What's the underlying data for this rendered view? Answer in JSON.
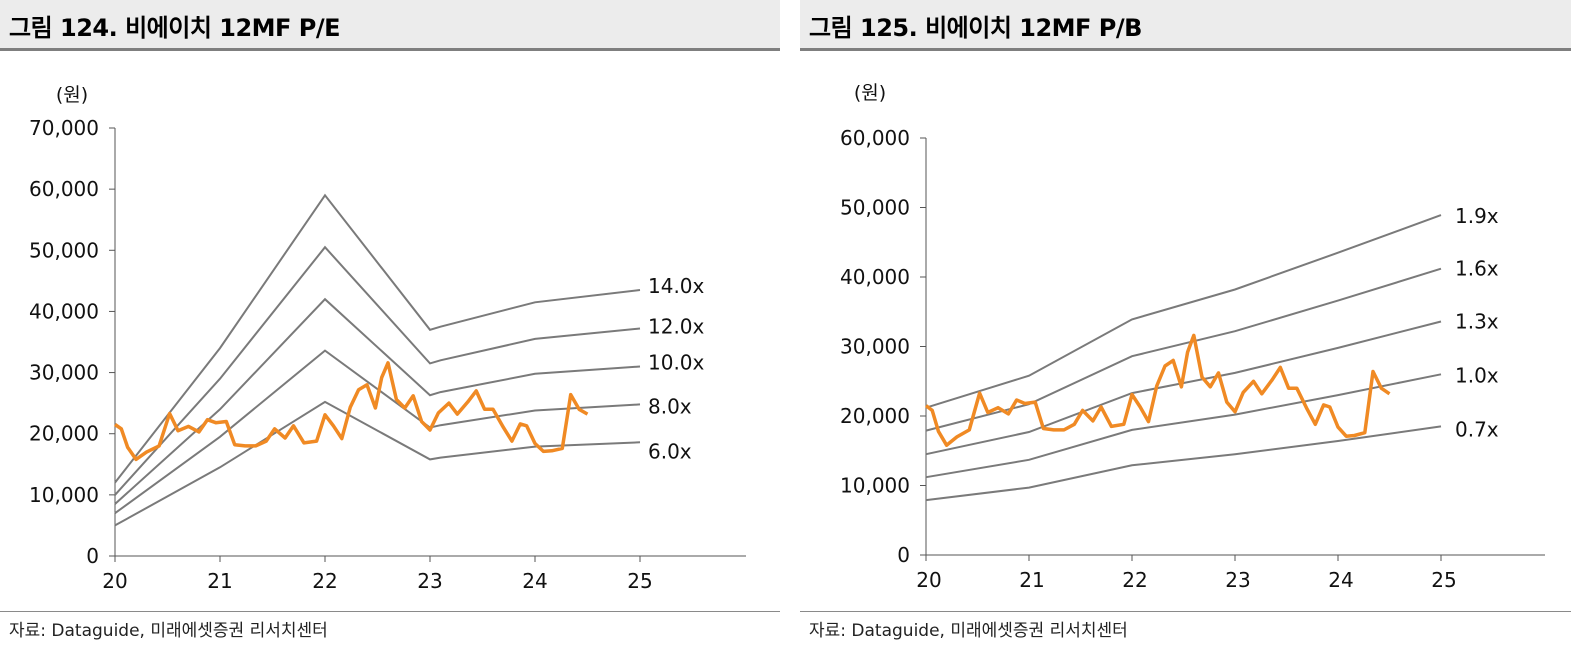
{
  "chart_data": [
    {
      "type": "line",
      "title": "그림 124. 비에이치 12MF P/E",
      "unit": "(원)",
      "source": "자료: Dataguide, 미래에셋증권 리서치센터",
      "x_ticks": [
        "20",
        "21",
        "22",
        "23",
        "24",
        "25"
      ],
      "y_ticks": [
        "0",
        "10,000",
        "20,000",
        "30,000",
        "40,000",
        "50,000",
        "60,000",
        "70,000"
      ],
      "xlim": [
        2020,
        2026
      ],
      "ylim": [
        0,
        70000
      ],
      "grid": false,
      "legend": "none",
      "band_labels": [
        "14.0x",
        "12.0x",
        "10.0x",
        "8.0x",
        "6.0x"
      ],
      "band_lines": [
        {
          "name": "14.0x",
          "x": [
            2020,
            2021,
            2022,
            2023,
            2023.1,
            2024,
            2025
          ],
          "y": [
            12000,
            34000,
            59000,
            37000,
            37500,
            41500,
            43500
          ]
        },
        {
          "name": "12.0x",
          "x": [
            2020,
            2021,
            2022,
            2023,
            2023.1,
            2024,
            2025
          ],
          "y": [
            10000,
            29000,
            50500,
            31500,
            32000,
            35500,
            37200
          ]
        },
        {
          "name": "10.0x",
          "x": [
            2020,
            2021,
            2022,
            2023,
            2023.1,
            2024,
            2025
          ],
          "y": [
            8500,
            24000,
            42000,
            26300,
            26800,
            29800,
            31000
          ]
        },
        {
          "name": "8.0x",
          "x": [
            2020,
            2021,
            2022,
            2023,
            2023.1,
            2024,
            2025
          ],
          "y": [
            7000,
            19500,
            33600,
            21000,
            21400,
            23800,
            24800
          ]
        },
        {
          "name": "6.0x",
          "x": [
            2020,
            2021,
            2022,
            2023,
            2023.1,
            2024,
            2025
          ],
          "y": [
            5000,
            14500,
            25200,
            15800,
            16100,
            17900,
            18600
          ]
        }
      ],
      "price_line": {
        "color": "#f08a24",
        "x": [
          2020,
          2020.06,
          2020.12,
          2020.2,
          2020.3,
          2020.42,
          2020.52,
          2020.6,
          2020.7,
          2020.8,
          2020.88,
          2020.96,
          2021.06,
          2021.14,
          2021.24,
          2021.34,
          2021.44,
          2021.52,
          2021.62,
          2021.7,
          2021.8,
          2021.92,
          2022,
          2022.08,
          2022.16,
          2022.24,
          2022.32,
          2022.4,
          2022.48,
          2022.54,
          2022.6,
          2022.68,
          2022.76,
          2022.84,
          2022.92,
          2023,
          2023.08,
          2023.18,
          2023.26,
          2023.36,
          2023.44,
          2023.52,
          2023.6,
          2023.7,
          2023.78,
          2023.86,
          2023.92,
          2024,
          2024.08,
          2024.16,
          2024.26,
          2024.34,
          2024.42,
          2024.5
        ],
        "y": [
          21500,
          20800,
          17800,
          15800,
          17000,
          18000,
          23300,
          20500,
          21200,
          20300,
          22300,
          21800,
          22000,
          18200,
          18000,
          18000,
          18800,
          20800,
          19300,
          21300,
          18500,
          18800,
          23100,
          21300,
          19200,
          24300,
          27200,
          28000,
          24200,
          29200,
          31600,
          25600,
          24200,
          26200,
          22000,
          20600,
          23400,
          25000,
          23200,
          25200,
          27000,
          24000,
          24000,
          21000,
          18800,
          21600,
          21300,
          18400,
          17100,
          17200,
          17600,
          26400,
          24000,
          23200
        ]
      }
    },
    {
      "type": "line",
      "title": "그림 125. 비에이치 12MF P/B",
      "unit": "(원)",
      "source": "자료: Dataguide, 미래에셋증권 리서치센터",
      "x_ticks": [
        "20",
        "21",
        "22",
        "23",
        "24",
        "25"
      ],
      "y_ticks": [
        "0",
        "10,000",
        "20,000",
        "30,000",
        "40,000",
        "50,000",
        "60,000"
      ],
      "xlim": [
        2020,
        2026
      ],
      "ylim": [
        0,
        60000
      ],
      "grid": false,
      "legend": "none",
      "band_labels": [
        "1.9x",
        "1.6x",
        "1.3x",
        "1.0x",
        "0.7x"
      ],
      "band_lines": [
        {
          "name": "1.9x",
          "x": [
            2020,
            2021,
            2022,
            2023,
            2024,
            2025
          ],
          "y": [
            21200,
            25800,
            33900,
            38200,
            43500,
            48900
          ]
        },
        {
          "name": "1.6x",
          "x": [
            2020,
            2021,
            2022,
            2023,
            2024,
            2025
          ],
          "y": [
            17900,
            21700,
            28600,
            32200,
            36600,
            41200
          ]
        },
        {
          "name": "1.3x",
          "x": [
            2020,
            2021,
            2022,
            2023,
            2024,
            2025
          ],
          "y": [
            14500,
            17700,
            23300,
            26200,
            29800,
            33600
          ]
        },
        {
          "name": "1.0x",
          "x": [
            2020,
            2021,
            2022,
            2023,
            2024,
            2025
          ],
          "y": [
            11200,
            13700,
            18000,
            20200,
            23000,
            26000
          ]
        },
        {
          "name": "0.7x",
          "x": [
            2020,
            2021,
            2022,
            2023,
            2024,
            2025
          ],
          "y": [
            7900,
            9700,
            12900,
            14500,
            16400,
            18500
          ]
        }
      ],
      "price_line": {
        "color": "#f08a24",
        "x": [
          2020,
          2020.06,
          2020.12,
          2020.2,
          2020.3,
          2020.42,
          2020.52,
          2020.6,
          2020.7,
          2020.8,
          2020.88,
          2020.96,
          2021.06,
          2021.14,
          2021.24,
          2021.34,
          2021.44,
          2021.52,
          2021.62,
          2021.7,
          2021.8,
          2021.92,
          2022,
          2022.08,
          2022.16,
          2022.24,
          2022.32,
          2022.4,
          2022.48,
          2022.54,
          2022.6,
          2022.68,
          2022.76,
          2022.84,
          2022.92,
          2023,
          2023.08,
          2023.18,
          2023.26,
          2023.36,
          2023.44,
          2023.52,
          2023.6,
          2023.7,
          2023.78,
          2023.86,
          2023.92,
          2024,
          2024.08,
          2024.16,
          2024.26,
          2024.34,
          2024.42,
          2024.5
        ],
        "y": [
          21500,
          20800,
          17800,
          15800,
          17000,
          18000,
          23300,
          20500,
          21200,
          20300,
          22300,
          21800,
          22000,
          18200,
          18000,
          18000,
          18800,
          20800,
          19300,
          21300,
          18500,
          18800,
          23100,
          21300,
          19200,
          24300,
          27200,
          28000,
          24200,
          29200,
          31600,
          25600,
          24200,
          26200,
          22000,
          20600,
          23400,
          25000,
          23200,
          25200,
          27000,
          24000,
          24000,
          21000,
          18800,
          21600,
          21300,
          18400,
          17100,
          17200,
          17600,
          26400,
          24000,
          23200
        ]
      }
    }
  ]
}
